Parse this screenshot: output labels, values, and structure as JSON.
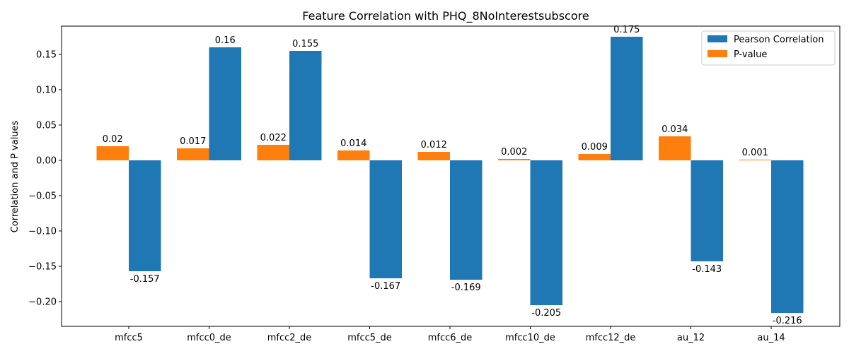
{
  "chart_data": {
    "type": "bar",
    "title": "Feature Correlation with PHQ_8NoInterestsubscore",
    "xlabel": "",
    "ylabel": "Correlation and P values",
    "categories": [
      "mfcc5",
      "mfcc0_de",
      "mfcc2_de",
      "mfcc5_de",
      "mfcc6_de",
      "mfcc10_de",
      "mfcc12_de",
      "au_12",
      "au_14"
    ],
    "series": [
      {
        "name": "P-value",
        "color": "#ff7f0e",
        "values": [
          0.02,
          0.017,
          0.022,
          0.014,
          0.012,
          0.002,
          0.009,
          0.034,
          0.001
        ],
        "labels": [
          "0.02",
          "0.017",
          "0.022",
          "0.014",
          "0.012",
          "0.002",
          "0.009",
          "0.034",
          "0.001"
        ]
      },
      {
        "name": "Pearson Correlation",
        "color": "#1f77b4",
        "values": [
          -0.157,
          0.16,
          0.155,
          -0.167,
          -0.169,
          -0.205,
          0.175,
          -0.143,
          -0.216
        ],
        "labels": [
          "-0.157",
          "0.16",
          "0.155",
          "-0.167",
          "-0.169",
          "-0.205",
          "0.175",
          "-0.143",
          "-0.216"
        ]
      }
    ],
    "legend_order": [
      "Pearson Correlation",
      "P-value"
    ],
    "legend_placement": "top-right",
    "ylim": [
      -0.235,
      0.19
    ],
    "yticks": [
      -0.2,
      -0.15,
      -0.1,
      -0.05,
      0.0,
      0.05,
      0.1,
      0.15
    ],
    "ytick_labels": [
      "−0.20",
      "−0.15",
      "−0.10",
      "−0.05",
      "0.00",
      "0.05",
      "0.10",
      "0.15"
    ],
    "grid": false
  }
}
